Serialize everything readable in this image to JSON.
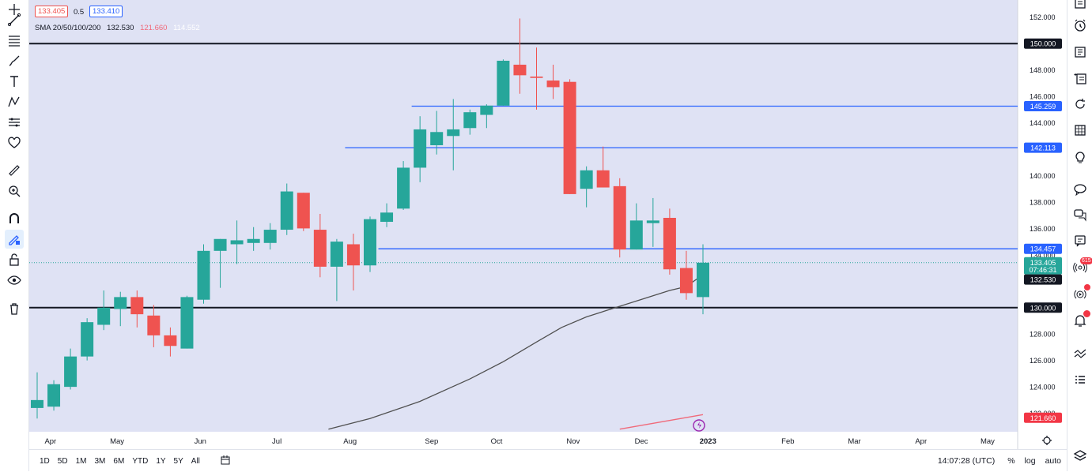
{
  "legend": {
    "bid": "133.405",
    "spread": "0.5",
    "ask": "133.410",
    "sma_label": "SMA 20/50/100/200",
    "sma_values": [
      "132.530",
      "121.660",
      "114.552"
    ]
  },
  "timeframes": [
    "1D",
    "5D",
    "1M",
    "3M",
    "6M",
    "YTD",
    "1Y",
    "5Y",
    "All"
  ],
  "status": {
    "time": "14:07:28 (UTC)",
    "percent": "%",
    "log": "log",
    "auto": "auto"
  },
  "notifications": {
    "alerts_count": "615"
  },
  "colors": {
    "up": "#26a69a",
    "down": "#ef5350",
    "hline_black": "#131722",
    "hline_blue": "#2962ff",
    "sma_gray": "#505050",
    "sma_red": "#f06a7a",
    "bg": "#dfe2f4"
  },
  "chart_data": {
    "type": "candlestick",
    "timeframe": "weekly",
    "y_axis": {
      "ticks": [
        122,
        124,
        126,
        128,
        130,
        132,
        134,
        136,
        138,
        140,
        142,
        144,
        146,
        148,
        150,
        152
      ],
      "tick_labels": [
        "122.000",
        "124.000",
        "126.000",
        "128.000",
        "130.000",
        "132.000",
        "134.000",
        "136.000",
        "138.000",
        "140.000",
        "142.000",
        "144.000",
        "146.000",
        "148.000",
        "150.000",
        "152.000"
      ],
      "range": [
        120.6,
        153.3
      ]
    },
    "x_axis": {
      "labels": [
        "Apr",
        "May",
        "Jun",
        "Jul",
        "Aug",
        "Sep",
        "Oct",
        "Nov",
        "Dec",
        "2023",
        "Feb",
        "Mar",
        "Apr",
        "May"
      ]
    },
    "candles": [
      {
        "o": 122.4,
        "h": 125.1,
        "l": 121.6,
        "c": 123.0
      },
      {
        "o": 122.5,
        "h": 124.5,
        "l": 122.2,
        "c": 124.2
      },
      {
        "o": 124.0,
        "h": 126.9,
        "l": 123.8,
        "c": 126.3
      },
      {
        "o": 126.3,
        "h": 129.2,
        "l": 126.0,
        "c": 128.9
      },
      {
        "o": 128.7,
        "h": 131.3,
        "l": 128.3,
        "c": 130.0
      },
      {
        "o": 129.9,
        "h": 131.2,
        "l": 128.6,
        "c": 130.8
      },
      {
        "o": 130.8,
        "h": 131.3,
        "l": 128.5,
        "c": 129.5
      },
      {
        "o": 129.4,
        "h": 130.2,
        "l": 127.0,
        "c": 127.9
      },
      {
        "o": 127.9,
        "h": 128.5,
        "l": 126.3,
        "c": 127.1
      },
      {
        "o": 126.9,
        "h": 130.9,
        "l": 126.9,
        "c": 130.8
      },
      {
        "o": 130.6,
        "h": 134.8,
        "l": 130.3,
        "c": 134.3
      },
      {
        "o": 134.3,
        "h": 135.1,
        "l": 131.5,
        "c": 135.2
      },
      {
        "o": 134.8,
        "h": 136.6,
        "l": 133.3,
        "c": 135.1
      },
      {
        "o": 134.9,
        "h": 136.1,
        "l": 134.3,
        "c": 135.2
      },
      {
        "o": 134.9,
        "h": 136.4,
        "l": 134.4,
        "c": 135.9
      },
      {
        "o": 135.9,
        "h": 139.4,
        "l": 135.5,
        "c": 138.8
      },
      {
        "o": 138.7,
        "h": 138.6,
        "l": 135.8,
        "c": 136.0
      },
      {
        "o": 135.9,
        "h": 137.1,
        "l": 132.3,
        "c": 133.1
      },
      {
        "o": 133.1,
        "h": 135.2,
        "l": 130.5,
        "c": 135.0
      },
      {
        "o": 134.8,
        "h": 135.6,
        "l": 131.3,
        "c": 133.2
      },
      {
        "o": 133.2,
        "h": 136.9,
        "l": 132.7,
        "c": 136.7
      },
      {
        "o": 136.5,
        "h": 137.9,
        "l": 136.1,
        "c": 137.2
      },
      {
        "o": 137.5,
        "h": 141.1,
        "l": 137.4,
        "c": 140.6
      },
      {
        "o": 140.6,
        "h": 144.5,
        "l": 139.5,
        "c": 143.5
      },
      {
        "o": 142.3,
        "h": 144.9,
        "l": 141.6,
        "c": 143.3
      },
      {
        "o": 143.0,
        "h": 145.8,
        "l": 140.4,
        "c": 143.5
      },
      {
        "o": 143.6,
        "h": 145.0,
        "l": 143.1,
        "c": 144.8
      },
      {
        "o": 144.6,
        "h": 145.4,
        "l": 143.6,
        "c": 145.3
      },
      {
        "o": 145.3,
        "h": 148.8,
        "l": 145.3,
        "c": 148.7
      },
      {
        "o": 148.4,
        "h": 151.9,
        "l": 146.2,
        "c": 147.6
      },
      {
        "o": 147.5,
        "h": 149.7,
        "l": 145.0,
        "c": 147.4
      },
      {
        "o": 147.2,
        "h": 148.4,
        "l": 145.8,
        "c": 146.7
      },
      {
        "o": 147.1,
        "h": 147.3,
        "l": 138.6,
        "c": 138.6
      },
      {
        "o": 139.0,
        "h": 140.7,
        "l": 137.6,
        "c": 140.4
      },
      {
        "o": 140.4,
        "h": 142.2,
        "l": 139.2,
        "c": 139.1
      },
      {
        "o": 139.2,
        "h": 139.8,
        "l": 133.8,
        "c": 134.4
      },
      {
        "o": 134.4,
        "h": 137.9,
        "l": 134.4,
        "c": 136.6
      },
      {
        "o": 136.4,
        "h": 138.3,
        "l": 134.6,
        "c": 136.6
      },
      {
        "o": 136.8,
        "h": 137.5,
        "l": 132.5,
        "c": 132.9
      },
      {
        "o": 133.0,
        "h": 134.3,
        "l": 130.6,
        "c": 131.1
      },
      {
        "o": 130.8,
        "h": 134.8,
        "l": 129.5,
        "c": 133.4
      }
    ],
    "horizontal_levels": [
      {
        "value": 150.0,
        "label": "150.000",
        "color": "black"
      },
      {
        "value": 145.259,
        "label": "145.259",
        "color": "blue"
      },
      {
        "value": 142.113,
        "label": "142.113",
        "color": "blue"
      },
      {
        "value": 134.457,
        "label": "134.457",
        "color": "blue"
      },
      {
        "value": 130.0,
        "label": "130.000",
        "color": "black"
      }
    ],
    "price_labels": {
      "last": "133.405",
      "countdown": "07:46:31",
      "sma20": "132.530",
      "sma50": "121.660"
    },
    "sma20": [
      {
        "i": 17.5,
        "v": 120.8
      },
      {
        "i": 20,
        "v": 121.6
      },
      {
        "i": 23,
        "v": 122.9
      },
      {
        "i": 26,
        "v": 124.6
      },
      {
        "i": 28,
        "v": 125.9
      },
      {
        "i": 30,
        "v": 127.4
      },
      {
        "i": 31.5,
        "v": 128.5
      },
      {
        "i": 33,
        "v": 129.3
      },
      {
        "i": 34.5,
        "v": 129.9
      },
      {
        "i": 36,
        "v": 130.5
      },
      {
        "i": 38,
        "v": 131.3
      },
      {
        "i": 39,
        "v": 131.6
      },
      {
        "i": 40,
        "v": 132.5
      }
    ],
    "sma50": [
      {
        "i": 35,
        "v": 120.8
      },
      {
        "i": 40,
        "v": 121.9
      }
    ]
  }
}
